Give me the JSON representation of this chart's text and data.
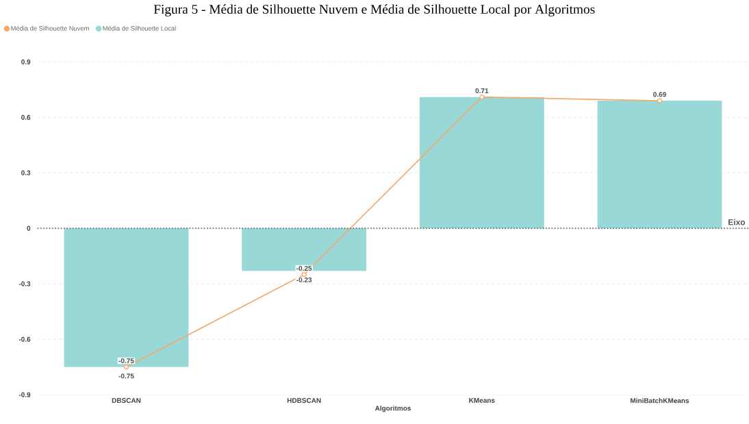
{
  "chart_data": {
    "type": "bar",
    "title": "Figura 5 - Média de Silhouette Nuvem e Média de Silhouette Local por Algoritmos",
    "xlabel": "Algoritmos",
    "categories": [
      "DBSCAN",
      "HDBSCAN",
      "KMeans",
      "MiniBatchKMeans"
    ],
    "series": [
      {
        "name": "Média de Silhouette Nuvem",
        "type": "line",
        "color": "#f2aa6e",
        "marker": "circle",
        "values": [
          -0.75,
          -0.25,
          0.71,
          0.69
        ],
        "value_labels": [
          "-0.75",
          "-0.25",
          "0.71",
          "0.69"
        ]
      },
      {
        "name": "Média de Silhouette Local",
        "color": "#98d9d8",
        "values": [
          -0.75,
          -0.23,
          0.71,
          0.69
        ],
        "value_labels": [
          "-0.75",
          "-0.23",
          null,
          null
        ]
      }
    ],
    "ylim": [
      -0.9,
      0.9
    ],
    "yticks": [
      -0.9,
      -0.6,
      -0.3,
      0,
      0.3,
      0.6,
      0.9
    ],
    "ref_lines": [
      {
        "axis": "y",
        "value": 0,
        "label": "Eixo",
        "line_style": "dotted",
        "color": "#555555"
      }
    ],
    "grid": "y",
    "legend": "top left"
  }
}
